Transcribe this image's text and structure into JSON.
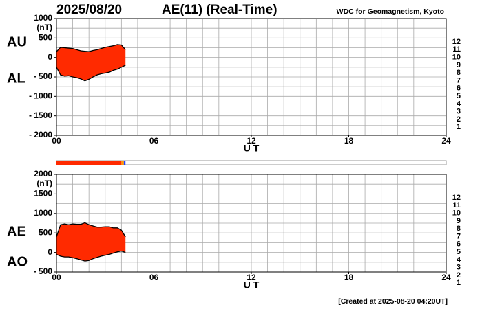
{
  "header": {
    "date": "2025/08/20",
    "title": "AE(11) (Real-Time)",
    "source": "WDC for Geomagnetism, Kyoto",
    "footer": "[Created at 2025-08-20 04:20UT]"
  },
  "station_legend": [
    {
      "label": "12",
      "color": "#ff0080"
    },
    {
      "label": "11",
      "color": "#ff0000"
    },
    {
      "label": "10",
      "color": "#ff9900"
    },
    {
      "label": "9",
      "color": "#ffee00"
    },
    {
      "label": "8",
      "color": "#aaee00"
    },
    {
      "label": "7",
      "color": "#00d0d0"
    },
    {
      "label": "6",
      "color": "#0080ff"
    },
    {
      "label": "5",
      "color": "#0000c0"
    },
    {
      "label": "4",
      "color": "#cc00cc"
    },
    {
      "label": "3",
      "color": "#000000"
    },
    {
      "label": "2",
      "color": "#666666"
    },
    {
      "label": "1",
      "color": "#bbbbbb"
    }
  ],
  "coverage": {
    "xlim": [
      0,
      24
    ],
    "segments": [
      {
        "from": 0,
        "to": 4.0,
        "color": "#ff2a00"
      },
      {
        "from": 4.0,
        "to": 4.15,
        "color": "#ff9900"
      },
      {
        "from": 4.15,
        "to": 4.25,
        "color": "#2040ff"
      }
    ]
  },
  "chart_data": [
    {
      "type": "band",
      "y_unit": "(nT)",
      "xlabel": "U T",
      "x": [
        0,
        0.25,
        0.5,
        0.75,
        1,
        1.25,
        1.5,
        1.75,
        2,
        2.25,
        2.5,
        2.75,
        3,
        3.25,
        3.5,
        3.75,
        4,
        4.25
      ],
      "series": [
        {
          "name": "AU",
          "color": "#000000",
          "values": [
            150,
            260,
            250,
            240,
            230,
            200,
            170,
            160,
            150,
            180,
            200,
            230,
            260,
            280,
            300,
            330,
            320,
            200
          ]
        },
        {
          "name": "AL",
          "color": "#000000",
          "values": [
            -250,
            -450,
            -480,
            -470,
            -500,
            -520,
            -550,
            -600,
            -560,
            -500,
            -450,
            -420,
            -400,
            -380,
            -330,
            -300,
            -250,
            -200
          ]
        }
      ],
      "fill": "#ff2a00",
      "xlim": [
        0,
        24
      ],
      "xticks": [
        {
          "value": 0,
          "label": "00"
        },
        {
          "value": 6,
          "label": "06"
        },
        12,
        18,
        24
      ],
      "ylim": [
        -2000,
        1000
      ],
      "yticks": [
        1000,
        500,
        0,
        {
          "value": -500,
          "label": "- 500"
        },
        {
          "value": -1000,
          "label": "- 1000"
        },
        {
          "value": -1500,
          "label": "- 1500"
        },
        {
          "value": -2000,
          "label": "- 2000"
        }
      ],
      "grid": true,
      "grid_step_x": 1,
      "grid_step_y": 250
    },
    {
      "type": "band",
      "y_unit": "(nT)",
      "xlabel": "U T",
      "x": [
        0,
        0.25,
        0.5,
        0.75,
        1,
        1.25,
        1.5,
        1.75,
        2,
        2.25,
        2.5,
        2.75,
        3,
        3.25,
        3.5,
        3.75,
        4,
        4.25
      ],
      "series": [
        {
          "name": "AE",
          "color": "#000000",
          "values": [
            400,
            710,
            730,
            710,
            730,
            720,
            720,
            760,
            710,
            680,
            650,
            650,
            660,
            660,
            630,
            630,
            570,
            400
          ]
        },
        {
          "name": "AO",
          "color": "#000000",
          "values": [
            -50,
            -95,
            -115,
            -115,
            -135,
            -160,
            -190,
            -220,
            -205,
            -160,
            -125,
            -95,
            -70,
            -50,
            -15,
            15,
            35,
            0
          ]
        }
      ],
      "fill": "#ff2a00",
      "xlim": [
        0,
        24
      ],
      "xticks": [
        {
          "value": 0,
          "label": "00"
        },
        {
          "value": 6,
          "label": "06"
        },
        12,
        18,
        24
      ],
      "ylim": [
        -500,
        2000
      ],
      "yticks": [
        2000,
        1500,
        1000,
        500,
        0,
        {
          "value": -500,
          "label": "- 500"
        }
      ],
      "grid": true,
      "grid_step_x": 1,
      "grid_step_y": 250
    }
  ]
}
